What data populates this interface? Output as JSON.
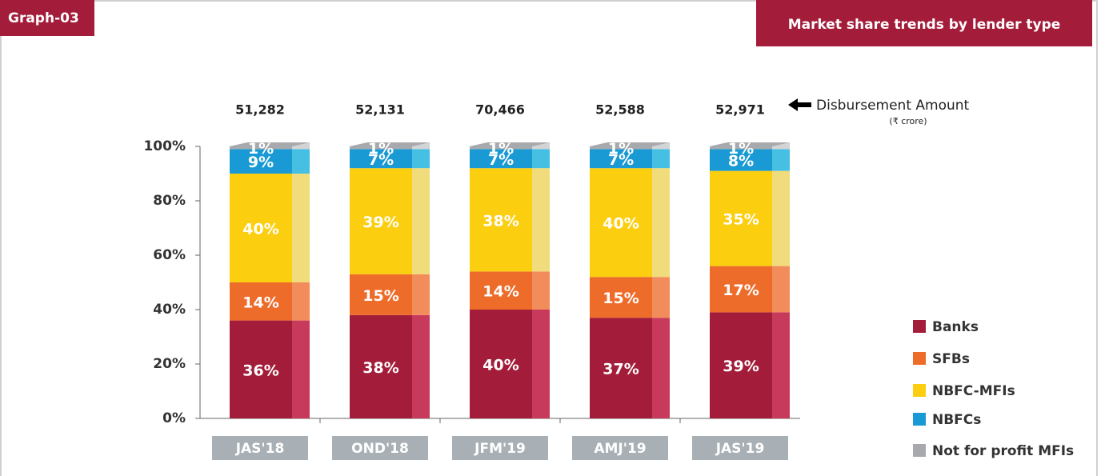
{
  "header": {
    "label": "Graph-03",
    "title": "Market share trends by lender type"
  },
  "chart_data": {
    "type": "stacked_bar_3d",
    "categories": [
      "JAS'18",
      "OND'18",
      "JFM'19",
      "AMJ'19",
      "JAS'19"
    ],
    "series": [
      {
        "name": "Banks",
        "color": "#a31d3a",
        "side_color": "#c83a5c",
        "values": [
          36,
          38,
          40,
          37,
          39
        ],
        "value_labels": [
          "36%",
          "38%",
          "40%",
          "37%",
          "39%"
        ]
      },
      {
        "name": "SFBs",
        "color": "#ee6c2a",
        "side_color": "#f28c5a",
        "values": [
          14,
          15,
          14,
          15,
          17
        ],
        "value_labels": [
          "14%",
          "15%",
          "14%",
          "15%",
          "17%"
        ]
      },
      {
        "name": "NBFC-MFIs",
        "color": "#fcce10",
        "side_color": "#f0dc7a",
        "values": [
          40,
          39,
          38,
          40,
          35
        ],
        "value_labels": [
          "40%",
          "39%",
          "38%",
          "40%",
          "35%"
        ]
      },
      {
        "name": "NBFCs",
        "color": "#1a9ad4",
        "side_color": "#45c0e3",
        "values": [
          9,
          7,
          7,
          7,
          8
        ],
        "value_labels": [
          "9%",
          "7%",
          "7%",
          "7%",
          "8%"
        ]
      },
      {
        "name": "Not for profit MFIs",
        "color": "#a7a9ac",
        "side_color": "#d3d4d5",
        "values": [
          1,
          1,
          1,
          1,
          1
        ],
        "value_labels": [
          "1%",
          "1%",
          "1%",
          "1%",
          "1%"
        ]
      }
    ],
    "disbursement": {
      "values": [
        51282,
        52131,
        70466,
        52588,
        52971
      ],
      "value_labels": [
        "51,282",
        "52,131",
        "70,466",
        "52,588",
        "52,971"
      ],
      "label": "Disbursement Amount",
      "unit": "(₹ crore)"
    },
    "ylim": [
      0,
      100
    ],
    "yticks": [
      {
        "value": 0,
        "label": "0%"
      },
      {
        "value": 20,
        "label": "20%"
      },
      {
        "value": 40,
        "label": "40%"
      },
      {
        "value": 60,
        "label": "60%"
      },
      {
        "value": 80,
        "label": "80%"
      },
      {
        "value": 100,
        "label": "100%"
      }
    ]
  }
}
